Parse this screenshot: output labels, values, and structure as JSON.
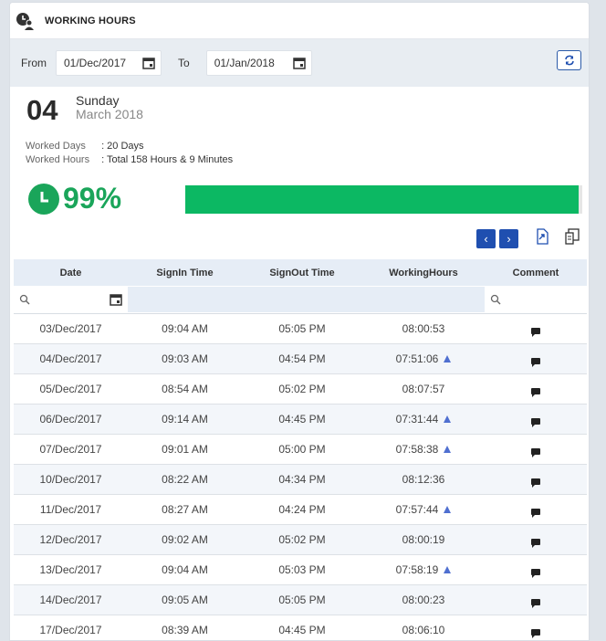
{
  "header": {
    "title": "WORKING HOURS"
  },
  "filter": {
    "from_label": "From",
    "from_value": "01/Dec/2017",
    "to_label": "To",
    "to_value": "01/Jan/2018"
  },
  "today": {
    "day": "04",
    "weekday": "Sunday",
    "month_year": "March 2018"
  },
  "summary": {
    "worked_days_label": "Worked Days",
    "worked_days_value": ": 20 Days",
    "worked_hours_label": "Worked Hours",
    "worked_hours_value": ": Total 158 Hours & 9 Minutes",
    "percent": "99%",
    "progress_fraction": 0.99
  },
  "colors": {
    "accent": "#1f4fb0",
    "success": "#0cb863",
    "warn_marker": "#4f6fd0"
  },
  "table": {
    "columns": [
      "Date",
      "SignIn Time",
      "SignOut Time",
      "WorkingHours",
      "Comment"
    ],
    "rows": [
      {
        "date": "03/Dec/2017",
        "signin": "09:04 AM",
        "signout": "05:05 PM",
        "hours": "08:00:53",
        "flag": false
      },
      {
        "date": "04/Dec/2017",
        "signin": "09:03 AM",
        "signout": "04:54 PM",
        "hours": "07:51:06",
        "flag": true
      },
      {
        "date": "05/Dec/2017",
        "signin": "08:54 AM",
        "signout": "05:02 PM",
        "hours": "08:07:57",
        "flag": false
      },
      {
        "date": "06/Dec/2017",
        "signin": "09:14 AM",
        "signout": "04:45 PM",
        "hours": "07:31:44",
        "flag": true
      },
      {
        "date": "07/Dec/2017",
        "signin": "09:01 AM",
        "signout": "05:00 PM",
        "hours": "07:58:38",
        "flag": true
      },
      {
        "date": "10/Dec/2017",
        "signin": "08:22 AM",
        "signout": "04:34 PM",
        "hours": "08:12:36",
        "flag": false
      },
      {
        "date": "11/Dec/2017",
        "signin": "08:27 AM",
        "signout": "04:24 PM",
        "hours": "07:57:44",
        "flag": true
      },
      {
        "date": "12/Dec/2017",
        "signin": "09:02 AM",
        "signout": "05:02 PM",
        "hours": "08:00:19",
        "flag": false
      },
      {
        "date": "13/Dec/2017",
        "signin": "09:04 AM",
        "signout": "05:03 PM",
        "hours": "07:58:19",
        "flag": true
      },
      {
        "date": "14/Dec/2017",
        "signin": "09:05 AM",
        "signout": "05:05 PM",
        "hours": "08:00:23",
        "flag": false
      },
      {
        "date": "17/Dec/2017",
        "signin": "08:39 AM",
        "signout": "04:45 PM",
        "hours": "08:06:10",
        "flag": false
      }
    ]
  }
}
